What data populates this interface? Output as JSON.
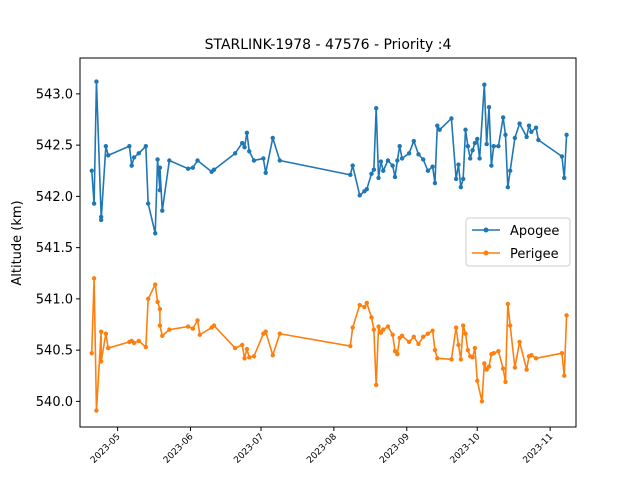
{
  "chart_data": {
    "type": "line",
    "title": "STARLINK-1978 - 47576 - Priority :4",
    "xlabel": "",
    "ylabel": "Altitude (km)",
    "xlim": [
      "2023-04-15",
      "2023-11-12"
    ],
    "ylim": [
      539.75,
      543.35
    ],
    "x_ticks": [
      "2023-05",
      "2023-06",
      "2023-07",
      "2023-08",
      "2023-09",
      "2023-10",
      "2023-11"
    ],
    "y_ticks": [
      "540.0",
      "540.5",
      "541.0",
      "541.5",
      "542.0",
      "542.5",
      "543.0"
    ],
    "y_tick_values": [
      540.0,
      540.5,
      541.0,
      541.5,
      542.0,
      542.5,
      543.0
    ],
    "legend_position": "center-right",
    "grid": false,
    "series": [
      {
        "name": "Apogee",
        "color": "#1f77b4",
        "points": [
          [
            "2023-04-20",
            542.25
          ],
          [
            "2023-04-21",
            541.93
          ],
          [
            "2023-04-22",
            543.12
          ],
          [
            "2023-04-24",
            541.8
          ],
          [
            "2023-04-24",
            541.77
          ],
          [
            "2023-04-26",
            542.49
          ],
          [
            "2023-04-27",
            542.4
          ],
          [
            "2023-05-06",
            542.49
          ],
          [
            "2023-05-07",
            542.3
          ],
          [
            "2023-05-08",
            542.38
          ],
          [
            "2023-05-10",
            542.42
          ],
          [
            "2023-05-13",
            542.49
          ],
          [
            "2023-05-14",
            541.93
          ],
          [
            "2023-05-17",
            541.64
          ],
          [
            "2023-05-18",
            542.36
          ],
          [
            "2023-05-19",
            542.06
          ],
          [
            "2023-05-19",
            542.28
          ],
          [
            "2023-05-20",
            541.86
          ],
          [
            "2023-05-23",
            542.35
          ],
          [
            "2023-05-31",
            542.27
          ],
          [
            "2023-06-02",
            542.28
          ],
          [
            "2023-06-04",
            542.35
          ],
          [
            "2023-06-10",
            542.24
          ],
          [
            "2023-06-11",
            542.26
          ],
          [
            "2023-06-20",
            542.42
          ],
          [
            "2023-06-23",
            542.52
          ],
          [
            "2023-06-24",
            542.48
          ],
          [
            "2023-06-25",
            542.62
          ],
          [
            "2023-06-26",
            542.44
          ],
          [
            "2023-06-28",
            542.35
          ],
          [
            "2023-07-02",
            542.37
          ],
          [
            "2023-07-03",
            542.23
          ],
          [
            "2023-07-06",
            542.57
          ],
          [
            "2023-07-09",
            542.35
          ],
          [
            "2023-08-08",
            542.21
          ],
          [
            "2023-08-09",
            542.3
          ],
          [
            "2023-08-12",
            542.01
          ],
          [
            "2023-08-14",
            542.05
          ],
          [
            "2023-08-15",
            542.07
          ],
          [
            "2023-08-17",
            542.22
          ],
          [
            "2023-08-18",
            542.26
          ],
          [
            "2023-08-19",
            542.86
          ],
          [
            "2023-08-20",
            542.18
          ],
          [
            "2023-08-21",
            542.34
          ],
          [
            "2023-08-22",
            542.25
          ],
          [
            "2023-08-24",
            542.35
          ],
          [
            "2023-08-26",
            542.3
          ],
          [
            "2023-08-27",
            542.19
          ],
          [
            "2023-08-28",
            542.35
          ],
          [
            "2023-08-29",
            542.49
          ],
          [
            "2023-08-30",
            542.37
          ],
          [
            "2023-09-02",
            542.42
          ],
          [
            "2023-09-04",
            542.54
          ],
          [
            "2023-09-06",
            542.41
          ],
          [
            "2023-09-08",
            542.36
          ],
          [
            "2023-09-10",
            542.25
          ],
          [
            "2023-09-12",
            542.29
          ],
          [
            "2023-09-13",
            542.13
          ],
          [
            "2023-09-14",
            542.69
          ],
          [
            "2023-09-15",
            542.65
          ],
          [
            "2023-09-20",
            542.76
          ],
          [
            "2023-09-22",
            542.17
          ],
          [
            "2023-09-23",
            542.31
          ],
          [
            "2023-09-24",
            542.09
          ],
          [
            "2023-09-25",
            542.17
          ],
          [
            "2023-09-26",
            542.65
          ],
          [
            "2023-09-27",
            542.49
          ],
          [
            "2023-09-28",
            542.37
          ],
          [
            "2023-09-29",
            542.45
          ],
          [
            "2023-09-30",
            542.52
          ],
          [
            "2023-10-01",
            542.56
          ],
          [
            "2023-10-02",
            542.37
          ],
          [
            "2023-10-04",
            543.09
          ],
          [
            "2023-10-05",
            542.51
          ],
          [
            "2023-10-06",
            542.87
          ],
          [
            "2023-10-07",
            542.3
          ],
          [
            "2023-10-08",
            542.49
          ],
          [
            "2023-10-10",
            542.49
          ],
          [
            "2023-10-12",
            542.77
          ],
          [
            "2023-10-13",
            542.6
          ],
          [
            "2023-10-14",
            542.09
          ],
          [
            "2023-10-15",
            542.25
          ],
          [
            "2023-10-17",
            542.57
          ],
          [
            "2023-10-19",
            542.71
          ],
          [
            "2023-10-22",
            542.58
          ],
          [
            "2023-10-23",
            542.69
          ],
          [
            "2023-10-24",
            542.63
          ],
          [
            "2023-10-26",
            542.67
          ],
          [
            "2023-10-27",
            542.55
          ],
          [
            "2023-11-06",
            542.39
          ],
          [
            "2023-11-07",
            542.18
          ],
          [
            "2023-11-08",
            542.6
          ]
        ]
      },
      {
        "name": "Perigee",
        "color": "#ff7f0e",
        "points": [
          [
            "2023-04-20",
            540.47
          ],
          [
            "2023-04-21",
            541.2
          ],
          [
            "2023-04-22",
            539.91
          ],
          [
            "2023-04-24",
            540.68
          ],
          [
            "2023-04-24",
            540.39
          ],
          [
            "2023-04-26",
            540.66
          ],
          [
            "2023-04-27",
            540.52
          ],
          [
            "2023-05-06",
            540.58
          ],
          [
            "2023-05-07",
            540.59
          ],
          [
            "2023-05-08",
            540.57
          ],
          [
            "2023-05-10",
            540.59
          ],
          [
            "2023-05-13",
            540.53
          ],
          [
            "2023-05-14",
            541.0
          ],
          [
            "2023-05-17",
            541.14
          ],
          [
            "2023-05-18",
            540.97
          ],
          [
            "2023-05-19",
            540.9
          ],
          [
            "2023-05-19",
            540.74
          ],
          [
            "2023-05-20",
            540.64
          ],
          [
            "2023-05-23",
            540.7
          ],
          [
            "2023-05-31",
            540.73
          ],
          [
            "2023-06-02",
            540.71
          ],
          [
            "2023-06-04",
            540.79
          ],
          [
            "2023-06-05",
            540.65
          ],
          [
            "2023-06-10",
            540.72
          ],
          [
            "2023-06-11",
            540.74
          ],
          [
            "2023-06-20",
            540.52
          ],
          [
            "2023-06-23",
            540.55
          ],
          [
            "2023-06-24",
            540.42
          ],
          [
            "2023-06-25",
            540.51
          ],
          [
            "2023-06-26",
            540.43
          ],
          [
            "2023-06-28",
            540.44
          ],
          [
            "2023-07-02",
            540.66
          ],
          [
            "2023-07-03",
            540.68
          ],
          [
            "2023-07-06",
            540.45
          ],
          [
            "2023-07-09",
            540.66
          ],
          [
            "2023-08-08",
            540.54
          ],
          [
            "2023-08-09",
            540.72
          ],
          [
            "2023-08-12",
            540.94
          ],
          [
            "2023-08-14",
            540.92
          ],
          [
            "2023-08-15",
            540.96
          ],
          [
            "2023-08-17",
            540.82
          ],
          [
            "2023-08-18",
            540.7
          ],
          [
            "2023-08-19",
            540.16
          ],
          [
            "2023-08-20",
            540.73
          ],
          [
            "2023-08-21",
            540.67
          ],
          [
            "2023-08-22",
            540.7
          ],
          [
            "2023-08-24",
            540.73
          ],
          [
            "2023-08-26",
            540.65
          ],
          [
            "2023-08-27",
            540.49
          ],
          [
            "2023-08-28",
            540.46
          ],
          [
            "2023-08-29",
            540.62
          ],
          [
            "2023-08-30",
            540.64
          ],
          [
            "2023-09-02",
            540.58
          ],
          [
            "2023-09-04",
            540.63
          ],
          [
            "2023-09-06",
            540.56
          ],
          [
            "2023-09-08",
            540.63
          ],
          [
            "2023-09-10",
            540.66
          ],
          [
            "2023-09-12",
            540.69
          ],
          [
            "2023-09-13",
            540.5
          ],
          [
            "2023-09-14",
            540.42
          ],
          [
            "2023-09-20",
            540.41
          ],
          [
            "2023-09-22",
            540.72
          ],
          [
            "2023-09-23",
            540.55
          ],
          [
            "2023-09-24",
            540.41
          ],
          [
            "2023-09-25",
            540.74
          ],
          [
            "2023-09-26",
            540.66
          ],
          [
            "2023-09-27",
            540.5
          ],
          [
            "2023-09-28",
            540.44
          ],
          [
            "2023-09-29",
            540.43
          ],
          [
            "2023-09-30",
            540.52
          ],
          [
            "2023-10-01",
            540.2
          ],
          [
            "2023-10-03",
            540.0
          ],
          [
            "2023-10-04",
            540.37
          ],
          [
            "2023-10-05",
            540.31
          ],
          [
            "2023-10-06",
            540.34
          ],
          [
            "2023-10-07",
            540.46
          ],
          [
            "2023-10-08",
            540.47
          ],
          [
            "2023-10-10",
            540.49
          ],
          [
            "2023-10-12",
            540.32
          ],
          [
            "2023-10-13",
            540.19
          ],
          [
            "2023-10-14",
            540.95
          ],
          [
            "2023-10-15",
            540.74
          ],
          [
            "2023-10-17",
            540.33
          ],
          [
            "2023-10-19",
            540.58
          ],
          [
            "2023-10-22",
            540.31
          ],
          [
            "2023-10-23",
            540.44
          ],
          [
            "2023-10-24",
            540.45
          ],
          [
            "2023-10-26",
            540.42
          ],
          [
            "2023-11-06",
            540.47
          ],
          [
            "2023-11-07",
            540.25
          ],
          [
            "2023-11-08",
            540.84
          ]
        ]
      }
    ]
  }
}
